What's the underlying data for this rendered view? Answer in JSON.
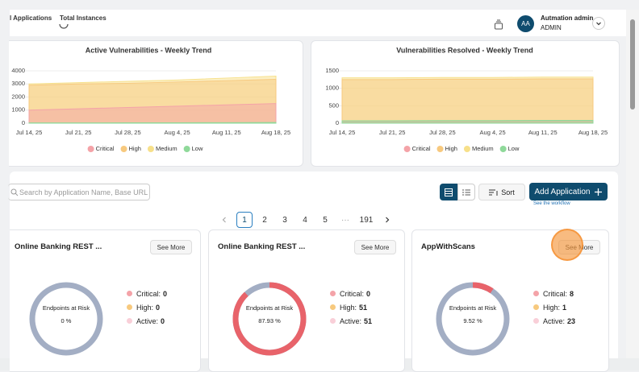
{
  "header": {
    "tabs": [
      "l Applications",
      "Total Instances"
    ],
    "user": {
      "initials": "AA",
      "name": "Autmation admin",
      "role": "ADMIN"
    }
  },
  "chart_data": [
    {
      "type": "area",
      "title": "Active Vulnerabilities - Weekly Trend",
      "categories": [
        "Jul 14, 25",
        "Jul 21, 25",
        "Jul 28, 25",
        "Aug 4, 25",
        "Aug 11, 25",
        "Aug 18, 25"
      ],
      "series": [
        {
          "name": "Critical",
          "color": "#f4a3a8",
          "values": [
            1000,
            1100,
            1200,
            1300,
            1400,
            1500
          ]
        },
        {
          "name": "High",
          "color": "#f7c97e",
          "values": [
            2900,
            3000,
            3050,
            3150,
            3250,
            3350
          ]
        },
        {
          "name": "Medium",
          "color": "#f7e08a",
          "values": [
            3000,
            3100,
            3200,
            3300,
            3450,
            3600
          ]
        },
        {
          "name": "Low",
          "color": "#8fd99a",
          "values": [
            20,
            20,
            30,
            30,
            40,
            50
          ]
        }
      ],
      "ylim": [
        0,
        4000
      ],
      "yticks": [
        0,
        1000,
        2000,
        3000,
        4000
      ],
      "grid": true
    },
    {
      "type": "area",
      "title": "Vulnerabilities Resolved - Weekly Trend",
      "categories": [
        "Jul 14, 25",
        "Jul 21, 25",
        "Jul 28, 25",
        "Aug 4, 25",
        "Aug 11, 25",
        "Aug 18, 25"
      ],
      "series": [
        {
          "name": "Critical",
          "color": "#f4a3a8",
          "values": [
            40,
            40,
            45,
            45,
            50,
            50
          ]
        },
        {
          "name": "High",
          "color": "#f7c97e",
          "values": [
            1250,
            1250,
            1260,
            1260,
            1270,
            1270
          ]
        },
        {
          "name": "Medium",
          "color": "#f7e08a",
          "values": [
            1300,
            1300,
            1310,
            1310,
            1320,
            1320
          ]
        },
        {
          "name": "Low",
          "color": "#8fd99a",
          "values": [
            70,
            70,
            75,
            75,
            80,
            80
          ]
        }
      ],
      "ylim": [
        0,
        1500
      ],
      "yticks": [
        0,
        500,
        1000,
        1500
      ],
      "grid": true
    }
  ],
  "toolbar": {
    "search_placeholder": "Search by Application Name, Base URL",
    "sort": "Sort",
    "add_button": "Add Application",
    "workflow_link": "See the workflow"
  },
  "pagination": {
    "pages": [
      1,
      2,
      3,
      4,
      5,
      "···",
      191
    ]
  },
  "cards": [
    {
      "title": "Online Banking REST ...",
      "button": "See More",
      "donut_label": "Endpoints at Risk",
      "percent": 0,
      "percent_label": "0 %",
      "stats": [
        {
          "label": "Critical:",
          "value": 0
        },
        {
          "label": "High:",
          "value": 0
        },
        {
          "label": "Active:",
          "value": 0
        }
      ]
    },
    {
      "title": "Online Banking REST ...",
      "button": "See More",
      "donut_label": "Endpoints at Risk",
      "percent": 87.93,
      "percent_label": "87.93 %",
      "stats": [
        {
          "label": "Critical:",
          "value": 0
        },
        {
          "label": "High:",
          "value": 51
        },
        {
          "label": "Active:",
          "value": 51
        }
      ]
    },
    {
      "title": "AppWithScans",
      "button": "See More",
      "donut_label": "Endpoints at Risk",
      "percent": 9.52,
      "percent_label": "9.52 %",
      "stats": [
        {
          "label": "Critical:",
          "value": 8
        },
        {
          "label": "High:",
          "value": 1
        },
        {
          "label": "Active:",
          "value": 23
        }
      ]
    }
  ]
}
